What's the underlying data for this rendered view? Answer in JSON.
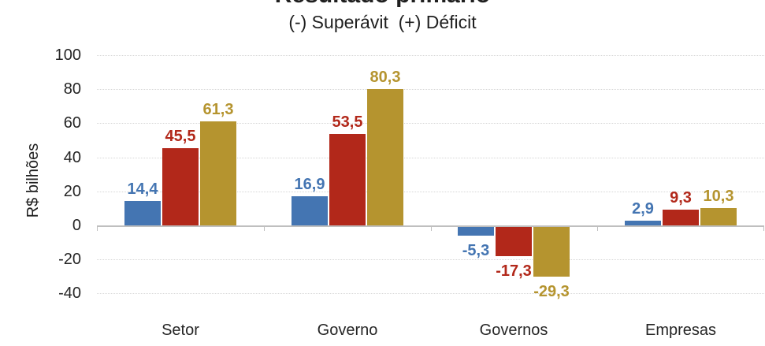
{
  "chart_data": {
    "type": "bar",
    "title": "Resultado primário",
    "subtitle": "(-) Superávit  (+) Déficit",
    "ylabel": "R$ bilhões",
    "ylim": [
      -40,
      100
    ],
    "yticks": [
      100,
      80,
      60,
      40,
      20,
      0,
      -20,
      -40
    ],
    "ytick_labels": [
      "100",
      "80",
      "60",
      "40",
      "20",
      "0",
      "-20",
      "-40"
    ],
    "grid": "horizontal-dotted",
    "legend": "none",
    "categories": [
      "Setor",
      "Governo",
      "Governos",
      "Empresas"
    ],
    "series": [
      {
        "name": "series-blue",
        "color": "#4475B2",
        "values": [
          14.4,
          16.9,
          -5.3,
          2.9
        ],
        "labels": [
          "14,4",
          "16,9",
          "-5,3",
          "2,9"
        ]
      },
      {
        "name": "series-red",
        "color": "#B2281A",
        "values": [
          45.5,
          53.5,
          -17.3,
          9.3
        ],
        "labels": [
          "45,5",
          "53,5",
          "-17,3",
          "9,3"
        ]
      },
      {
        "name": "series-gold",
        "color": "#B5942F",
        "values": [
          61.3,
          80.3,
          -29.3,
          10.3
        ],
        "labels": [
          "61,3",
          "80,3",
          "-29,3",
          "10,3"
        ]
      }
    ],
    "colors": {
      "axis_line": "#BFBFBF",
      "gridline": "#D6D6D6",
      "text": "#262626"
    }
  }
}
